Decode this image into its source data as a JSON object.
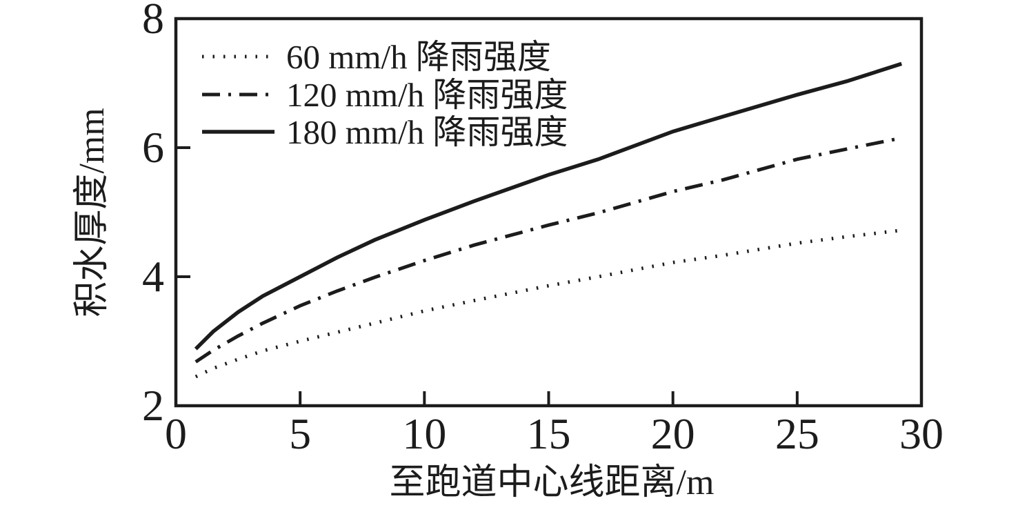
{
  "figure": {
    "background": "#ffffff",
    "ink_color": "#1c1c1c"
  },
  "chart_data": {
    "type": "line",
    "title": "",
    "xlabel": "至跑道中心线距离/m",
    "ylabel": "积水厚度/mm",
    "xlim": [
      0,
      30
    ],
    "ylim": [
      2,
      8
    ],
    "x_ticks": [
      0,
      5,
      10,
      15,
      20,
      25,
      30
    ],
    "y_ticks": [
      2,
      4,
      6,
      8
    ],
    "grid": false,
    "legend_position": "upper-left-inside",
    "x": [
      0.8,
      1.5,
      2.5,
      3.5,
      5,
      6.5,
      8,
      10,
      12,
      15,
      17,
      20,
      22,
      25,
      27,
      29.2
    ],
    "series": [
      {
        "name": "60 mm/h 降雨强度",
        "style": "dotted",
        "values": [
          2.45,
          2.58,
          2.72,
          2.85,
          3.0,
          3.14,
          3.28,
          3.47,
          3.63,
          3.86,
          4.0,
          4.22,
          4.33,
          4.52,
          4.62,
          4.72
        ]
      },
      {
        "name": "120 mm/h 降雨强度",
        "style": "dashdot",
        "values": [
          2.68,
          2.86,
          3.08,
          3.28,
          3.55,
          3.78,
          3.99,
          4.25,
          4.49,
          4.8,
          4.99,
          5.32,
          5.5,
          5.82,
          5.98,
          6.15
        ]
      },
      {
        "name": "180 mm/h 降雨强度",
        "style": "solid",
        "values": [
          2.88,
          3.15,
          3.45,
          3.7,
          4.0,
          4.3,
          4.57,
          4.88,
          5.17,
          5.58,
          5.82,
          6.25,
          6.48,
          6.82,
          7.03,
          7.3
        ]
      }
    ]
  }
}
